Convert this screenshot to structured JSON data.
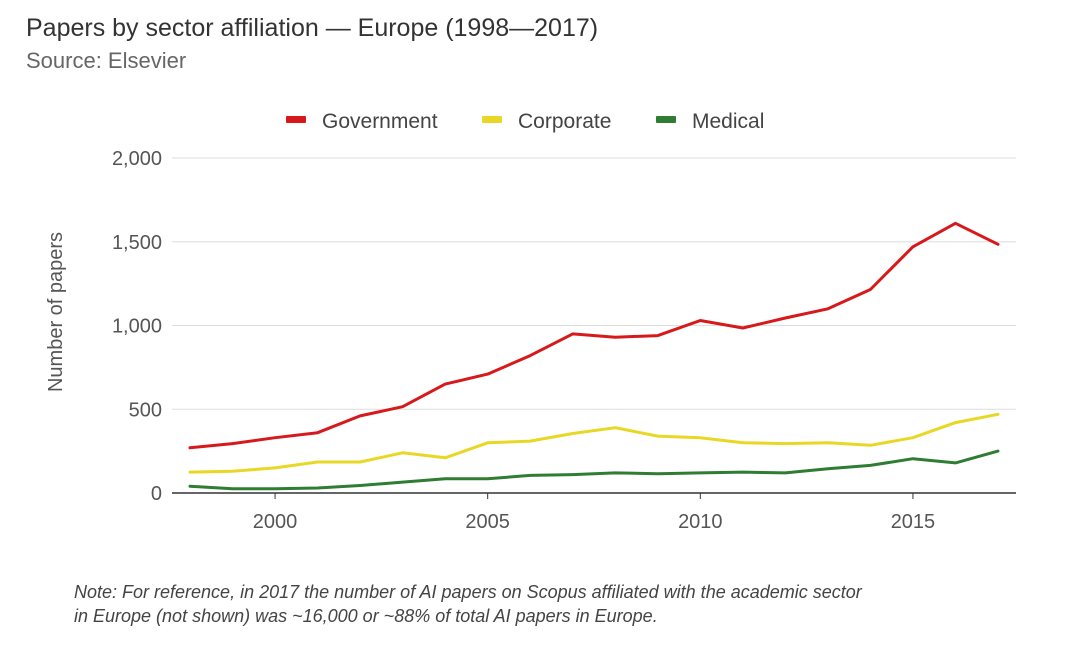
{
  "header": {
    "title": "Papers by sector affiliation — Europe (1998—2017)",
    "subtitle": "Source: Elsevier"
  },
  "note": {
    "line1": "Note: For reference, in 2017 the number of AI papers on Scopus affiliated with the academic sector",
    "line2": "in Europe (not shown) was ~16,000 or ~88% of total AI papers in Europe."
  },
  "chart_data": {
    "type": "line",
    "title": "Papers by sector affiliation — Europe (1998—2017)",
    "subtitle": "Source: Elsevier",
    "xlabel": "",
    "ylabel": "Number of papers",
    "xlim": [
      1998,
      2017
    ],
    "ylim": [
      0,
      2000
    ],
    "x_ticks": [
      2000,
      2005,
      2010,
      2015
    ],
    "y_ticks": [
      0,
      500,
      1000,
      1500,
      2000
    ],
    "y_tick_labels": [
      "0",
      "500",
      "1,000",
      "1,500",
      "2,000"
    ],
    "grid": "horizontal",
    "legend": "top-center",
    "x": [
      1998,
      1999,
      2000,
      2001,
      2002,
      2003,
      2004,
      2005,
      2006,
      2007,
      2008,
      2009,
      2010,
      2011,
      2012,
      2013,
      2014,
      2015,
      2016,
      2017
    ],
    "series": [
      {
        "name": "Government",
        "color": "#d7191c",
        "values": [
          270,
          295,
          330,
          360,
          460,
          515,
          650,
          710,
          820,
          950,
          930,
          940,
          1030,
          985,
          1045,
          1100,
          1215,
          1470,
          1610,
          1485
        ]
      },
      {
        "name": "Corporate",
        "color": "#e8d825",
        "values": [
          125,
          130,
          150,
          185,
          185,
          240,
          210,
          300,
          310,
          355,
          390,
          340,
          330,
          300,
          295,
          300,
          285,
          330,
          420,
          470
        ]
      },
      {
        "name": "Medical",
        "color": "#2e7d32",
        "values": [
          40,
          25,
          25,
          30,
          45,
          65,
          85,
          85,
          105,
          110,
          120,
          115,
          120,
          125,
          120,
          145,
          165,
          205,
          180,
          250
        ]
      }
    ]
  }
}
